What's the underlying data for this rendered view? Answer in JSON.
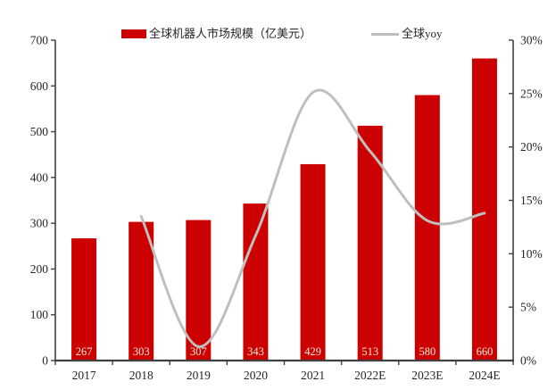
{
  "legend": {
    "bar_label": "全球机器人市场规模（亿美元）",
    "line_label": "全球yoy"
  },
  "chart_data": {
    "type": "combo-bar-line",
    "title": "",
    "categories": [
      "2017",
      "2018",
      "2019",
      "2020",
      "2021",
      "2022E",
      "2023E",
      "2024E"
    ],
    "series": [
      {
        "name": "全球机器人市场规模（亿美元）",
        "type": "bar",
        "axis": "left",
        "values": [
          267,
          303,
          307,
          343,
          429,
          513,
          580,
          660
        ],
        "value_labels": [
          "267",
          "303",
          "307",
          "343",
          "429",
          "513",
          "580",
          "660"
        ]
      },
      {
        "name": "全球yoy",
        "type": "line",
        "axis": "right",
        "smooth": true,
        "values": [
          null,
          13.5,
          1.3,
          11.7,
          25.1,
          19.6,
          13.1,
          13.8
        ]
      }
    ],
    "left_axis": {
      "min": 0,
      "max": 700,
      "step": 100,
      "tick_labels": [
        "0",
        "100",
        "200",
        "300",
        "400",
        "500",
        "600",
        "700"
      ]
    },
    "right_axis": {
      "min": 0,
      "max": 30,
      "step": 5,
      "tick_labels": [
        "0%",
        "5%",
        "10%",
        "15%",
        "20%",
        "25%",
        "30%"
      ]
    },
    "grid": false,
    "legend_position": "top",
    "colors": {
      "bar": "#CC0000",
      "line": "#BFBFBF",
      "axis": "#404040",
      "tick_text": "#262626",
      "bar_value_label": "#F2EEDC"
    }
  }
}
